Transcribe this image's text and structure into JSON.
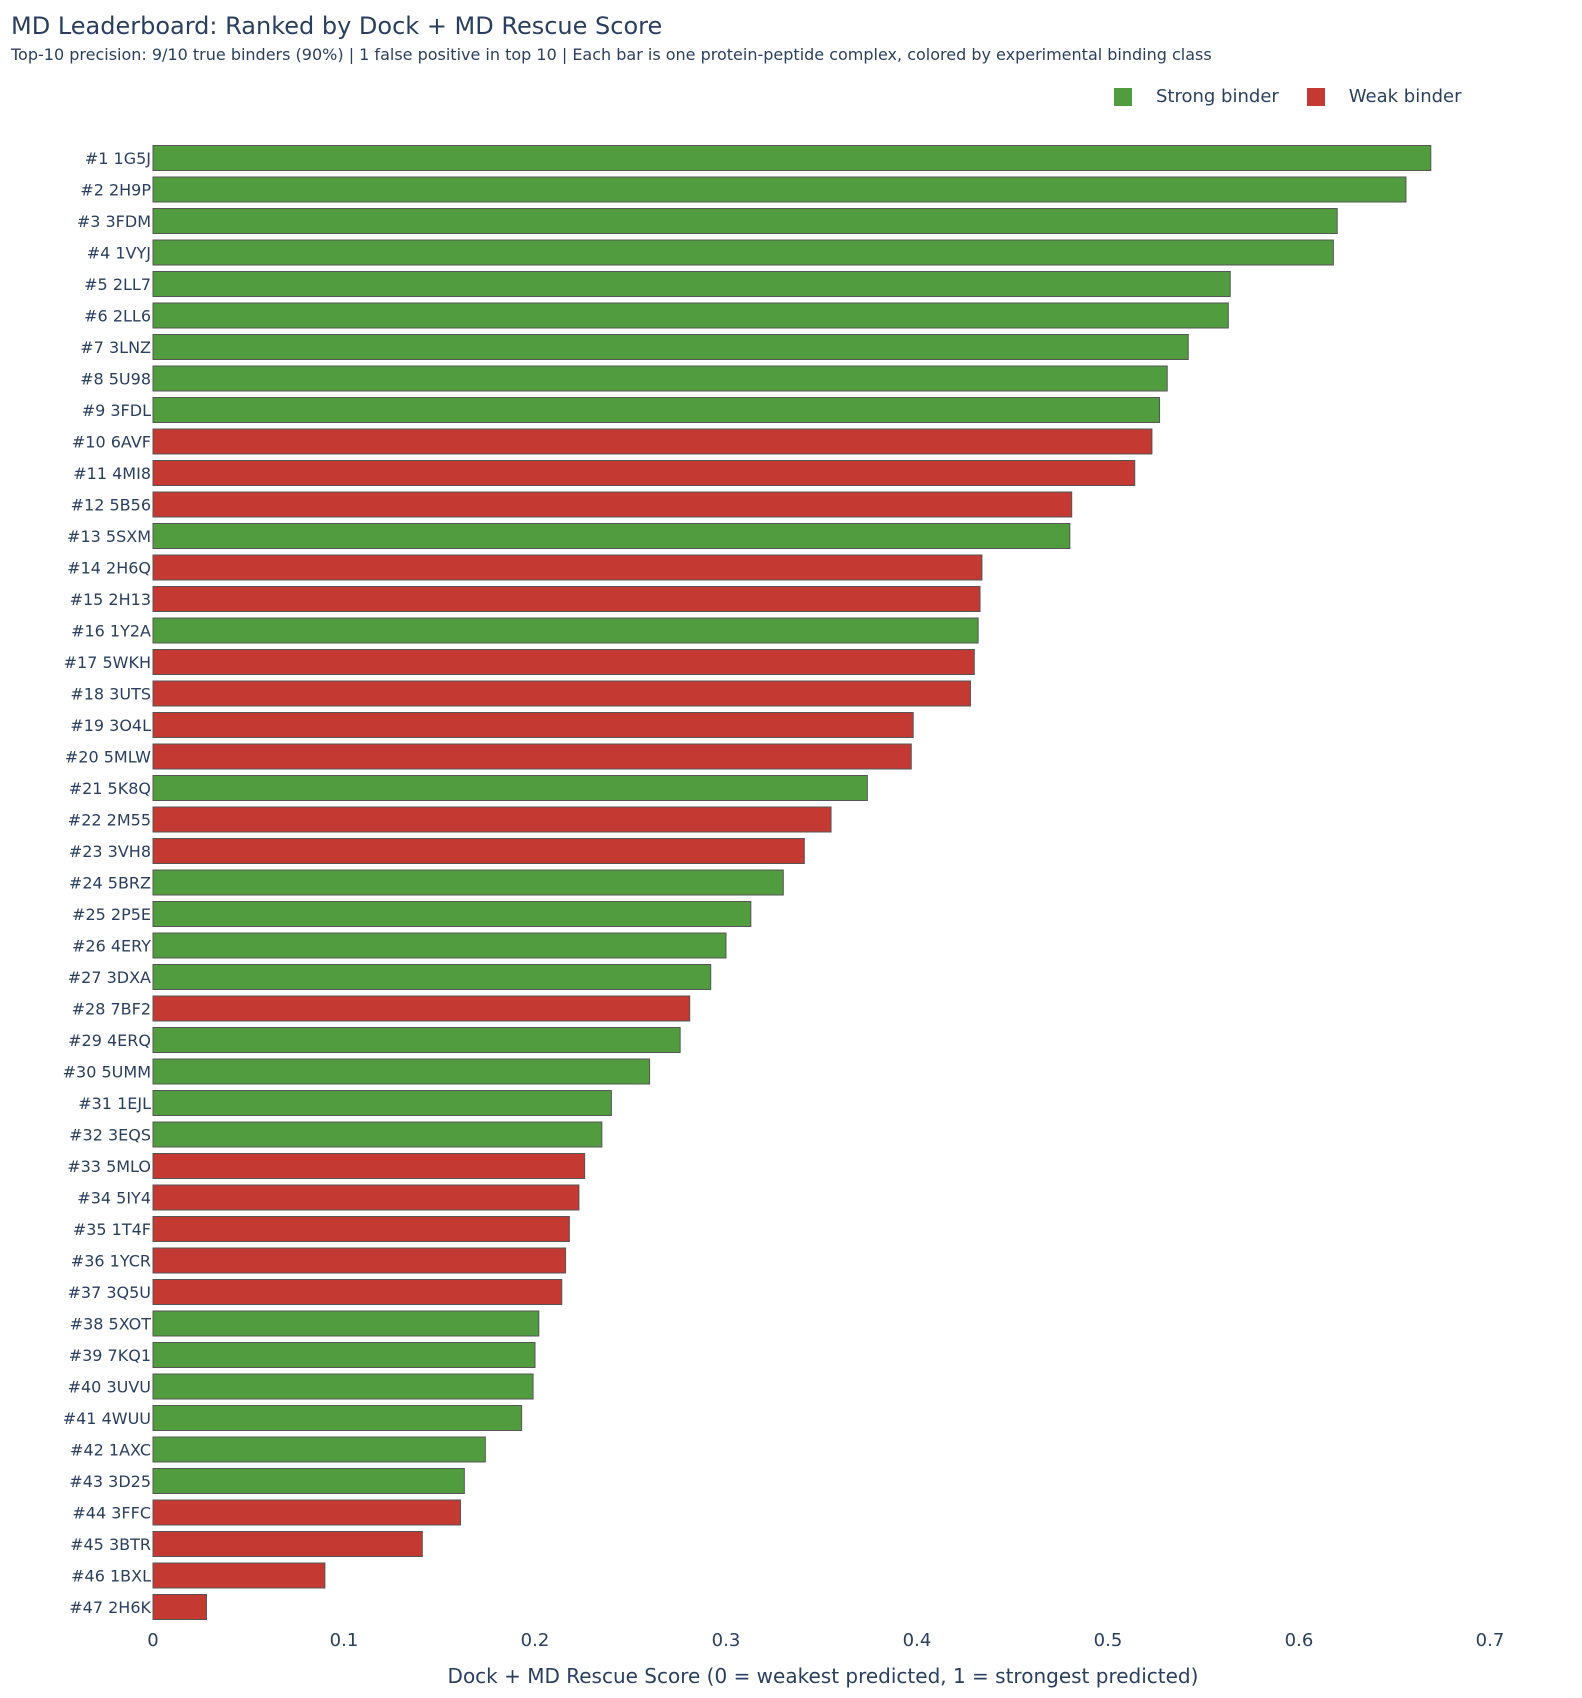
{
  "chart_data": {
    "type": "bar",
    "orientation": "horizontal",
    "title": "MD Leaderboard: Ranked by Dock + MD Rescue Score",
    "subtitle": "Top-10 precision: 9/10 true binders (90%)  |  1 false positive in top 10  |  Each bar is one protein-peptide complex, colored by experimental binding class",
    "xlabel": "Dock + MD Rescue Score (0 = weakest predicted, 1 = strongest predicted)",
    "ylabel": "",
    "xlim": [
      0,
      0.7
    ],
    "xticks": [
      0,
      0.1,
      0.2,
      0.3,
      0.4,
      0.5,
      0.6,
      0.7
    ],
    "xtick_labels": [
      "0",
      "0.1",
      "0.2",
      "0.3",
      "0.4",
      "0.5",
      "0.6",
      "0.7"
    ],
    "grid": false,
    "legend": {
      "position": "top-right",
      "entries": [
        {
          "name": "Strong binder",
          "color": "#519c3e"
        },
        {
          "name": "Weak binder",
          "color": "#c43a33"
        }
      ]
    },
    "colors": {
      "Strong binder": "#519c3e",
      "Weak binder": "#c43a33",
      "bar_outline": "#555555",
      "text": "#2a3f5f"
    },
    "categories": [
      "#1 1G5J",
      "#2 2H9P",
      "#3 3FDM",
      "#4 1VYJ",
      "#5 2LL7",
      "#6 2LL6",
      "#7 3LNZ",
      "#8 5U98",
      "#9 3FDL",
      "#10 6AVF",
      "#11 4MI8",
      "#12 5B56",
      "#13 5SXM",
      "#14 2H6Q",
      "#15 2H13",
      "#16 1Y2A",
      "#17 5WKH",
      "#18 3UTS",
      "#19 3O4L",
      "#20 5MLW",
      "#21 5K8Q",
      "#22 2M55",
      "#23 3VH8",
      "#24 5BRZ",
      "#25 2P5E",
      "#26 4ERY",
      "#27 3DXA",
      "#28 7BF2",
      "#29 4ERQ",
      "#30 5UMM",
      "#31 1EJL",
      "#32 3EQS",
      "#33 5MLO",
      "#34 5IY4",
      "#35 1T4F",
      "#36 1YCR",
      "#37 3Q5U",
      "#38 5XOT",
      "#39 7KQ1",
      "#40 3UVU",
      "#41 4WUU",
      "#42 1AXC",
      "#43 3D25",
      "#44 3FFC",
      "#45 3BTR",
      "#46 1BXL",
      "#47 2H6K"
    ],
    "values": [
      0.669,
      0.656,
      0.62,
      0.618,
      0.564,
      0.563,
      0.542,
      0.531,
      0.527,
      0.523,
      0.514,
      0.481,
      0.48,
      0.434,
      0.433,
      0.432,
      0.43,
      0.428,
      0.398,
      0.397,
      0.374,
      0.355,
      0.341,
      0.33,
      0.313,
      0.3,
      0.292,
      0.281,
      0.276,
      0.26,
      0.24,
      0.235,
      0.226,
      0.223,
      0.218,
      0.216,
      0.214,
      0.202,
      0.2,
      0.199,
      0.193,
      0.174,
      0.163,
      0.161,
      0.141,
      0.09,
      0.028
    ],
    "classes": [
      "Strong binder",
      "Strong binder",
      "Strong binder",
      "Strong binder",
      "Strong binder",
      "Strong binder",
      "Strong binder",
      "Strong binder",
      "Strong binder",
      "Weak binder",
      "Weak binder",
      "Weak binder",
      "Strong binder",
      "Weak binder",
      "Weak binder",
      "Strong binder",
      "Weak binder",
      "Weak binder",
      "Weak binder",
      "Weak binder",
      "Strong binder",
      "Weak binder",
      "Weak binder",
      "Strong binder",
      "Strong binder",
      "Strong binder",
      "Strong binder",
      "Weak binder",
      "Strong binder",
      "Strong binder",
      "Strong binder",
      "Strong binder",
      "Weak binder",
      "Weak binder",
      "Weak binder",
      "Weak binder",
      "Weak binder",
      "Strong binder",
      "Strong binder",
      "Strong binder",
      "Strong binder",
      "Strong binder",
      "Strong binder",
      "Weak binder",
      "Weak binder",
      "Weak binder",
      "Weak binder"
    ]
  }
}
